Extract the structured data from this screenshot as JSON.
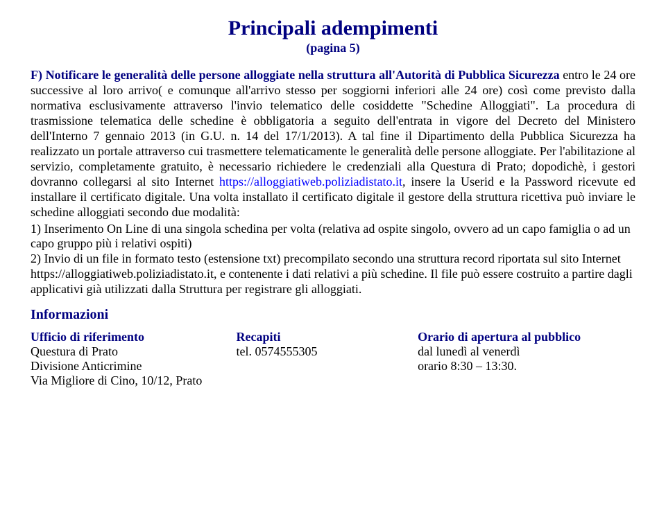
{
  "title": "Principali adempimenti",
  "subtitle": "(pagina 5)",
  "body": {
    "lead": "F) Notificare le generalità delle persone alloggiate nella struttura all'Autorità di Pubblica Sicurezza ",
    "p1": "entro le 24 ore successive al loro arrivo( e comunque all'arrivo stesso per soggiorni inferiori alle 24 ore) così come previsto dalla normativa esclusivamente attraverso l'invio telematico delle cosiddette \"Schedine Alloggiati\". La procedura di trasmissione telematica delle schedine è obbligatoria a seguito dell'entrata in vigore del Decreto del Ministero dell'Interno 7 gennaio 2013 (in G.U. n. 14 del 17/1/2013). A tal fine il Dipartimento della Pubblica Sicurezza ha realizzato un portale attraverso cui trasmettere telematicamente le generalità delle persone alloggiate. Per l'abilitazione al servizio, completamente gratuito, è necessario richiedere le credenziali alla Questura di Prato; dopodichè, i gestori dovranno collegarsi al sito Internet ",
    "link": "https://alloggiatiweb.poliziadistato.it",
    "p2": ", insere la Userid e la Password ricevute ed installare il certificato digitale. Una volta installato il certificato digitale il gestore della struttura ricettiva può inviare le schedine alloggiati secondo due modalità:",
    "li1": "1) Inserimento On Line di una singola schedina per volta (relativa ad ospite singolo, ovvero ad un capo famiglia o ad un capo gruppo più i relativi ospiti)",
    "li2": "2) Invio di un file in formato testo (estensione txt) precompilato secondo una struttura record riportata sul sito Internet https://alloggiatiweb.poliziadistato.it, e contenente i dati relativi a più schedine. Il file può essere costruito a partire dagli applicativi già utilizzati dalla Struttura per registrare gli alloggiati."
  },
  "info": {
    "heading": "Informazioni",
    "col1_header": "Ufficio di riferimento",
    "col2_header": "Recapiti",
    "col3_header": "Orario di apertura al pubblico",
    "office_line1": "Questura di Prato",
    "office_line2": "Divisione Anticrimine",
    "office_line3": "Via Migliore di Cino, 10/12, Prato",
    "contact": "tel. 0574555305",
    "hours_line1": "dal lunedì al venerdì",
    "hours_line2": "orario 8:30 – 13:30."
  }
}
